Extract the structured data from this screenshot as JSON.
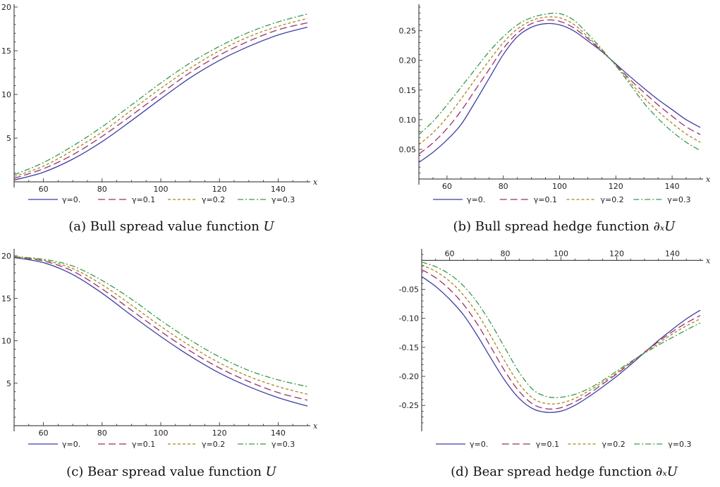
{
  "series_styles": [
    {
      "color": "#3b3fa3",
      "dash": ""
    },
    {
      "color": "#9c2f6b",
      "dash": "10 5"
    },
    {
      "color": "#a8861f",
      "dash": "4 3"
    },
    {
      "color": "#3a9a4a",
      "dash": "8 3 2 3"
    }
  ],
  "chart_data": [
    {
      "type": "line",
      "caption": "(a) Bull spread value function",
      "caption_math": "U",
      "xlabel": "x",
      "ylabel": "",
      "xlim": [
        50,
        150
      ],
      "ylim": [
        0,
        20
      ],
      "xticks": [
        60,
        80,
        100,
        120,
        140
      ],
      "xtick_labels": [
        "60",
        "80",
        "100",
        "120",
        "140"
      ],
      "yticks": [
        5,
        10,
        15,
        20
      ],
      "ytick_labels": [
        "5",
        "10",
        "15",
        "20"
      ],
      "x": [
        50,
        60,
        70,
        80,
        90,
        100,
        110,
        120,
        130,
        140,
        150
      ],
      "series": [
        {
          "name": "γ=0.",
          "values": [
            0.2,
            1.1,
            2.6,
            4.6,
            7.0,
            9.5,
            11.9,
            13.9,
            15.5,
            16.8,
            17.7
          ]
        },
        {
          "name": "γ=0.1",
          "values": [
            0.4,
            1.5,
            3.1,
            5.2,
            7.6,
            10.1,
            12.5,
            14.5,
            16.1,
            17.4,
            18.2
          ]
        },
        {
          "name": "γ=0.2",
          "values": [
            0.6,
            1.8,
            3.6,
            5.7,
            8.2,
            10.7,
            13.0,
            15.0,
            16.6,
            17.8,
            18.7
          ]
        },
        {
          "name": "γ=0.3",
          "values": [
            0.8,
            2.2,
            4.1,
            6.3,
            8.8,
            11.3,
            13.6,
            15.5,
            17.1,
            18.3,
            19.2
          ]
        }
      ]
    },
    {
      "type": "line",
      "caption": "(b) Bull spread hedge function",
      "caption_math": "∂ₓU",
      "xlabel": "x",
      "ylabel": "",
      "xlim": [
        50,
        150
      ],
      "ylim": [
        0,
        0.29
      ],
      "xticks": [
        60,
        80,
        100,
        120,
        140
      ],
      "xtick_labels": [
        "60",
        "80",
        "100",
        "120",
        "140"
      ],
      "yticks": [
        0.05,
        0.1,
        0.15,
        0.2,
        0.25
      ],
      "ytick_labels": [
        "0.05",
        "0.10",
        "0.15",
        "0.20",
        "0.25"
      ],
      "x": [
        50,
        55,
        60,
        65,
        70,
        75,
        80,
        85,
        90,
        95,
        100,
        105,
        110,
        115,
        120,
        125,
        130,
        135,
        140,
        145,
        150
      ],
      "series": [
        {
          "name": "γ=0.",
          "values": [
            0.028,
            0.045,
            0.066,
            0.092,
            0.13,
            0.17,
            0.21,
            0.24,
            0.256,
            0.262,
            0.26,
            0.25,
            0.233,
            0.215,
            0.194,
            0.173,
            0.153,
            0.134,
            0.117,
            0.1,
            0.087
          ]
        },
        {
          "name": "γ=0.1",
          "values": [
            0.042,
            0.061,
            0.085,
            0.115,
            0.15,
            0.185,
            0.22,
            0.246,
            0.262,
            0.268,
            0.266,
            0.255,
            0.237,
            0.216,
            0.193,
            0.168,
            0.146,
            0.125,
            0.106,
            0.088,
            0.075
          ]
        },
        {
          "name": "γ=0.2",
          "values": [
            0.058,
            0.078,
            0.104,
            0.135,
            0.168,
            0.2,
            0.23,
            0.253,
            0.267,
            0.273,
            0.272,
            0.261,
            0.24,
            0.217,
            0.192,
            0.164,
            0.137,
            0.114,
            0.094,
            0.076,
            0.062
          ]
        },
        {
          "name": "γ=0.3",
          "values": [
            0.075,
            0.097,
            0.125,
            0.155,
            0.185,
            0.215,
            0.24,
            0.26,
            0.272,
            0.278,
            0.279,
            0.268,
            0.245,
            0.219,
            0.191,
            0.16,
            0.128,
            0.102,
            0.08,
            0.062,
            0.048
          ]
        }
      ]
    },
    {
      "type": "line",
      "caption": "(c) Bear spread value function",
      "caption_math": "U",
      "xlabel": "x",
      "ylabel": "",
      "xlim": [
        50,
        150
      ],
      "ylim": [
        0,
        20.5
      ],
      "xticks": [
        60,
        80,
        100,
        120,
        140
      ],
      "xtick_labels": [
        "60",
        "80",
        "100",
        "120",
        "140"
      ],
      "yticks": [
        5,
        10,
        15,
        20
      ],
      "ytick_labels": [
        "5",
        "10",
        "15",
        "20"
      ],
      "x": [
        50,
        60,
        70,
        80,
        90,
        100,
        110,
        120,
        130,
        140,
        150
      ],
      "series": [
        {
          "name": "γ=0.",
          "values": [
            19.8,
            19.2,
            17.8,
            15.6,
            13.0,
            10.5,
            8.2,
            6.2,
            4.6,
            3.3,
            2.3
          ]
        },
        {
          "name": "γ=0.1",
          "values": [
            19.8,
            19.4,
            18.2,
            16.1,
            13.6,
            11.1,
            8.8,
            6.8,
            5.2,
            3.9,
            3.0
          ]
        },
        {
          "name": "γ=0.2",
          "values": [
            19.9,
            19.5,
            18.5,
            16.6,
            14.2,
            11.7,
            9.4,
            7.4,
            5.8,
            4.6,
            3.7
          ]
        },
        {
          "name": "γ=0.3",
          "values": [
            19.9,
            19.6,
            18.8,
            17.1,
            14.9,
            12.4,
            10.1,
            8.1,
            6.5,
            5.4,
            4.6
          ]
        }
      ]
    },
    {
      "type": "line",
      "caption": "(d) Bear spread hedge function",
      "caption_math": "∂ₓU",
      "xlabel": "x",
      "ylabel": "",
      "xlim": [
        50,
        150
      ],
      "ylim": [
        -0.285,
        0.015
      ],
      "xticks": [
        60,
        80,
        100,
        120,
        140
      ],
      "xtick_labels": [
        "60",
        "80",
        "100",
        "120",
        "140"
      ],
      "yticks": [
        -0.05,
        -0.1,
        -0.15,
        -0.2,
        -0.25
      ],
      "ytick_labels": [
        "-0.05",
        "-0.10",
        "-0.15",
        "-0.20",
        "-0.25"
      ],
      "x": [
        50,
        55,
        60,
        65,
        70,
        75,
        80,
        85,
        90,
        95,
        100,
        105,
        110,
        115,
        120,
        125,
        130,
        135,
        140,
        145,
        150
      ],
      "series": [
        {
          "name": "γ=0.",
          "values": [
            -0.028,
            -0.045,
            -0.067,
            -0.094,
            -0.13,
            -0.17,
            -0.208,
            -0.238,
            -0.256,
            -0.262,
            -0.26,
            -0.25,
            -0.235,
            -0.218,
            -0.2,
            -0.18,
            -0.159,
            -0.138,
            -0.119,
            -0.101,
            -0.086
          ]
        },
        {
          "name": "γ=0.1",
          "values": [
            -0.016,
            -0.03,
            -0.05,
            -0.076,
            -0.11,
            -0.151,
            -0.192,
            -0.226,
            -0.248,
            -0.256,
            -0.254,
            -0.244,
            -0.23,
            -0.213,
            -0.196,
            -0.177,
            -0.158,
            -0.14,
            -0.123,
            -0.108,
            -0.095
          ]
        },
        {
          "name": "γ=0.2",
          "values": [
            -0.008,
            -0.019,
            -0.036,
            -0.06,
            -0.092,
            -0.132,
            -0.175,
            -0.213,
            -0.238,
            -0.247,
            -0.246,
            -0.238,
            -0.225,
            -0.21,
            -0.194,
            -0.176,
            -0.159,
            -0.143,
            -0.127,
            -0.113,
            -0.101
          ]
        },
        {
          "name": "γ=0.3",
          "values": [
            -0.003,
            -0.011,
            -0.024,
            -0.044,
            -0.073,
            -0.11,
            -0.152,
            -0.193,
            -0.223,
            -0.235,
            -0.236,
            -0.231,
            -0.221,
            -0.207,
            -0.191,
            -0.175,
            -0.16,
            -0.146,
            -0.133,
            -0.12,
            -0.108
          ]
        }
      ]
    }
  ]
}
